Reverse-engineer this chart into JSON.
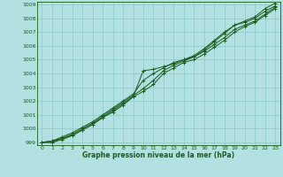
{
  "background_color": "#b3e0e0",
  "grid_color": "#8ecece",
  "line_color": "#1a5c1a",
  "xlabel": "Graphe pression niveau de la mer (hPa)",
  "xlim": [
    -0.5,
    23.5
  ],
  "ylim": [
    998.8,
    1009.2
  ],
  "xticks": [
    0,
    1,
    2,
    3,
    4,
    5,
    6,
    7,
    8,
    9,
    10,
    11,
    12,
    13,
    14,
    15,
    16,
    17,
    18,
    19,
    20,
    21,
    22,
    23
  ],
  "yticks": [
    999,
    1000,
    1001,
    1002,
    1003,
    1004,
    1005,
    1006,
    1007,
    1008,
    1009
  ],
  "series": [
    [
      999.0,
      999.0,
      999.2,
      999.5,
      999.9,
      1000.3,
      1000.8,
      1001.2,
      1001.7,
      1002.3,
      1004.2,
      1004.3,
      1004.5,
      1004.7,
      1005.0,
      1005.2,
      1005.7,
      1006.3,
      1006.9,
      1007.5,
      1007.8,
      1008.1,
      1008.7,
      1009.1
    ],
    [
      999.0,
      999.1,
      999.4,
      999.7,
      1000.1,
      1000.5,
      1001.0,
      1001.5,
      1002.0,
      1002.5,
      1003.5,
      1004.0,
      1004.4,
      1004.8,
      1005.0,
      1005.3,
      1005.8,
      1006.4,
      1007.0,
      1007.5,
      1007.7,
      1008.0,
      1008.5,
      1008.9
    ],
    [
      999.0,
      999.1,
      999.3,
      999.6,
      1000.0,
      1000.4,
      1000.9,
      1001.4,
      1001.9,
      1002.4,
      1002.9,
      1003.5,
      1004.2,
      1004.6,
      1004.9,
      1005.2,
      1005.6,
      1006.1,
      1006.6,
      1007.2,
      1007.5,
      1007.8,
      1008.3,
      1008.8
    ],
    [
      999.0,
      999.0,
      999.3,
      999.5,
      999.9,
      1000.3,
      1000.8,
      1001.3,
      1001.8,
      1002.3,
      1002.7,
      1003.2,
      1004.0,
      1004.4,
      1004.8,
      1005.0,
      1005.4,
      1005.9,
      1006.4,
      1007.0,
      1007.4,
      1007.7,
      1008.2,
      1008.7
    ]
  ]
}
